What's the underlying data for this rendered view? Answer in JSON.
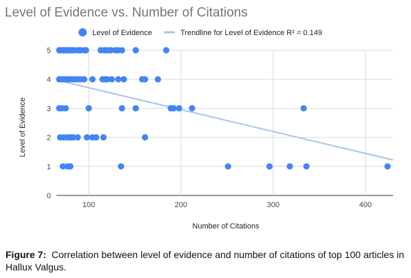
{
  "chart_data": {
    "type": "scatter",
    "title": "Level of Evidence vs. Number of Citations",
    "xlabel": "Number of Citations",
    "ylabel": "Level of Evidence",
    "xlim": [
      65,
      430
    ],
    "ylim": [
      0,
      5
    ],
    "x_ticks": [
      100,
      200,
      300,
      400
    ],
    "y_ticks": [
      0,
      1,
      2,
      3,
      4,
      5
    ],
    "grid": true,
    "legend_position": "top",
    "series": [
      {
        "name": "Level of Evidence",
        "color": "#4285f4",
        "points": [
          [
            68,
            5
          ],
          [
            70,
            5
          ],
          [
            72,
            5
          ],
          [
            74,
            5
          ],
          [
            76,
            5
          ],
          [
            78,
            5
          ],
          [
            80,
            5
          ],
          [
            82,
            5
          ],
          [
            84,
            5
          ],
          [
            88,
            5
          ],
          [
            91,
            5
          ],
          [
            95,
            5
          ],
          [
            97,
            5
          ],
          [
            113,
            5
          ],
          [
            117,
            5
          ],
          [
            120,
            5
          ],
          [
            124,
            5
          ],
          [
            129,
            5
          ],
          [
            132,
            5
          ],
          [
            136,
            5
          ],
          [
            151,
            5
          ],
          [
            184,
            5
          ],
          [
            68,
            4
          ],
          [
            70,
            4
          ],
          [
            73,
            4
          ],
          [
            75,
            4
          ],
          [
            77,
            4
          ],
          [
            80,
            4
          ],
          [
            82,
            4
          ],
          [
            85,
            4
          ],
          [
            88,
            4
          ],
          [
            91,
            4
          ],
          [
            95,
            4
          ],
          [
            104,
            4
          ],
          [
            115,
            4
          ],
          [
            118,
            4
          ],
          [
            120,
            4
          ],
          [
            125,
            4
          ],
          [
            132,
            4
          ],
          [
            138,
            4
          ],
          [
            158,
            4
          ],
          [
            161,
            4
          ],
          [
            175,
            4
          ],
          [
            68,
            3
          ],
          [
            71,
            3
          ],
          [
            75,
            3
          ],
          [
            100,
            3
          ],
          [
            136,
            3
          ],
          [
            151,
            3
          ],
          [
            189,
            3
          ],
          [
            192,
            3
          ],
          [
            198,
            3
          ],
          [
            212,
            3
          ],
          [
            333,
            3
          ],
          [
            69,
            2
          ],
          [
            73,
            2
          ],
          [
            77,
            2
          ],
          [
            80,
            2
          ],
          [
            83,
            2
          ],
          [
            88,
            2
          ],
          [
            98,
            2
          ],
          [
            104,
            2
          ],
          [
            108,
            2
          ],
          [
            116,
            2
          ],
          [
            161,
            2
          ],
          [
            72,
            1
          ],
          [
            77,
            1
          ],
          [
            80,
            1
          ],
          [
            135,
            1
          ],
          [
            251,
            1
          ],
          [
            296,
            1
          ],
          [
            318,
            1
          ],
          [
            336,
            1
          ],
          [
            424,
            1
          ]
        ]
      }
    ],
    "trendline": {
      "name": "Trendline for Level of Evidence R² = 0.149",
      "color": "#a9c4ea",
      "endpoints": [
        [
          68,
          3.95
        ],
        [
          430,
          1.22
        ]
      ]
    }
  },
  "caption": {
    "label": "Figure 7:",
    "text": "Correlation between level of evidence and number of citations of top 100 articles in Hallux Valgus."
  }
}
